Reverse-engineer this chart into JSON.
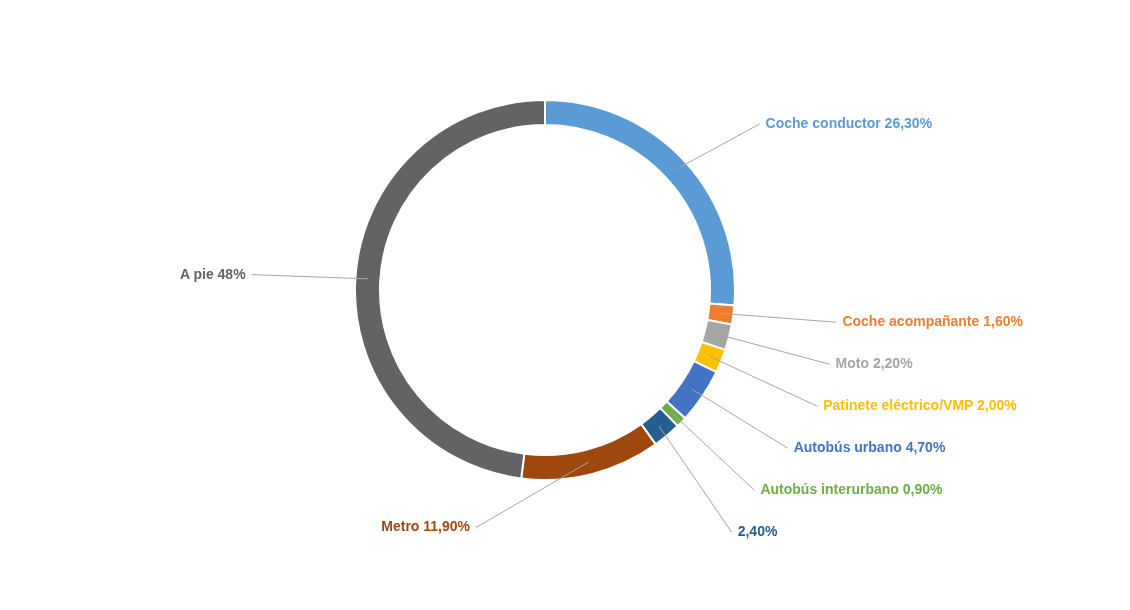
{
  "chart_data": {
    "type": "donut",
    "categories": [
      "Coche conductor",
      "Coche acompañante",
      "Moto",
      "Patinete eléctrico/VMP",
      "Autobús urbano",
      "Autobús interurbano",
      null,
      "Metro",
      "A pie"
    ],
    "values": [
      26.3,
      1.6,
      2.2,
      2.0,
      4.7,
      0.9,
      2.4,
      11.9,
      48
    ],
    "value_labels": [
      "26,30%",
      "1,60%",
      "2,20%",
      "2,00%",
      "4,70%",
      "0,90%",
      "2,40%",
      "11,90%",
      "48%"
    ],
    "colors": [
      "#5b9bd5",
      "#ed7d31",
      "#a5a5a5",
      "#ffc000",
      "#4472c4",
      "#70ad47",
      "#255e91",
      "#9e480e",
      "#636363"
    ]
  }
}
